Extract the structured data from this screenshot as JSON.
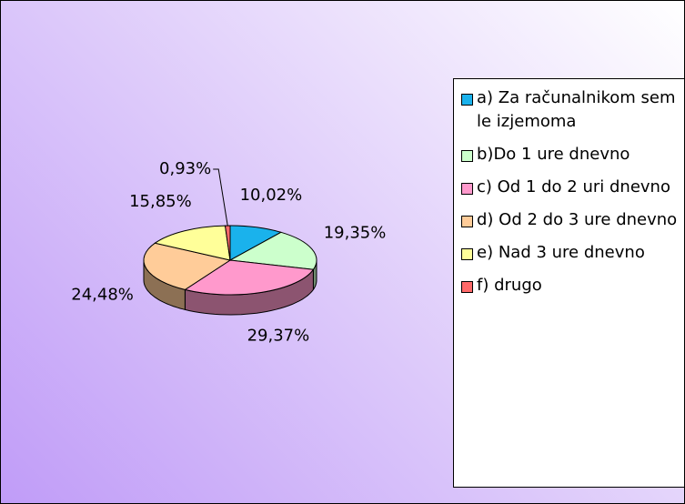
{
  "chart_data": {
    "type": "pie",
    "categories": [
      "a) Za računalnikom sem le izjemoma",
      "b)Do 1 ure dnevno",
      "c) Od 1 do 2 uri dnevno",
      "d) Od 2 do 3 ure dnevno",
      "e) Nad 3 ure dnevno",
      "f) drugo"
    ],
    "values": [
      10.02,
      19.35,
      29.37,
      24.48,
      15.85,
      0.93
    ],
    "value_labels": [
      "10,02%",
      "19,35%",
      "29,37%",
      "24,48%",
      "15,85%",
      "0,93%"
    ],
    "colors": [
      "#1ab2ec",
      "#ccffcc",
      "#ff99cc",
      "#ffcc99",
      "#ffff99",
      "#ff6a6a"
    ],
    "legend": "right"
  }
}
